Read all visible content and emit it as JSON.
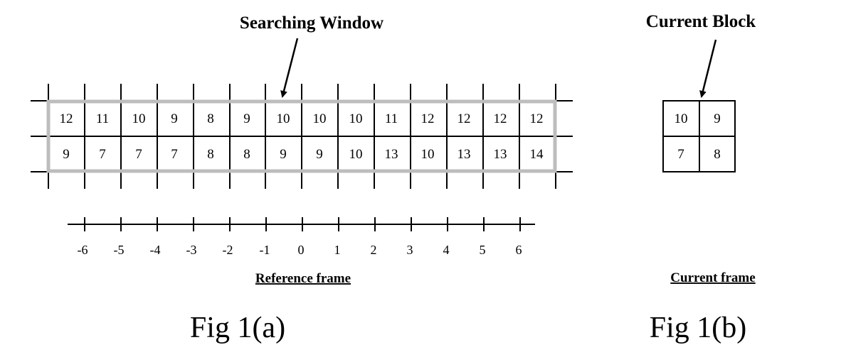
{
  "figure_a": {
    "title": "Searching Window",
    "caption": "Fig 1(a)",
    "frame_label": "Reference frame",
    "rows": [
      [
        "12",
        "11",
        "10",
        "9",
        "8",
        "9",
        "10",
        "10",
        "10",
        "11",
        "12",
        "12",
        "12",
        "12"
      ],
      [
        "9",
        "7",
        "7",
        "7",
        "8",
        "8",
        "9",
        "9",
        "10",
        "13",
        "10",
        "13",
        "13",
        "14"
      ]
    ],
    "axis_ticks": [
      "-6",
      "-5",
      "-4",
      "-3",
      "-2",
      "-1",
      "0",
      "1",
      "2",
      "3",
      "4",
      "5",
      "6"
    ]
  },
  "figure_b": {
    "title": "Current Block",
    "caption": "Fig 1(b)",
    "frame_label": "Current frame",
    "rows": [
      [
        "10",
        "9"
      ],
      [
        "7",
        "8"
      ]
    ]
  },
  "colors": {
    "line": "#000000",
    "window_border": "#bdbdbd"
  }
}
